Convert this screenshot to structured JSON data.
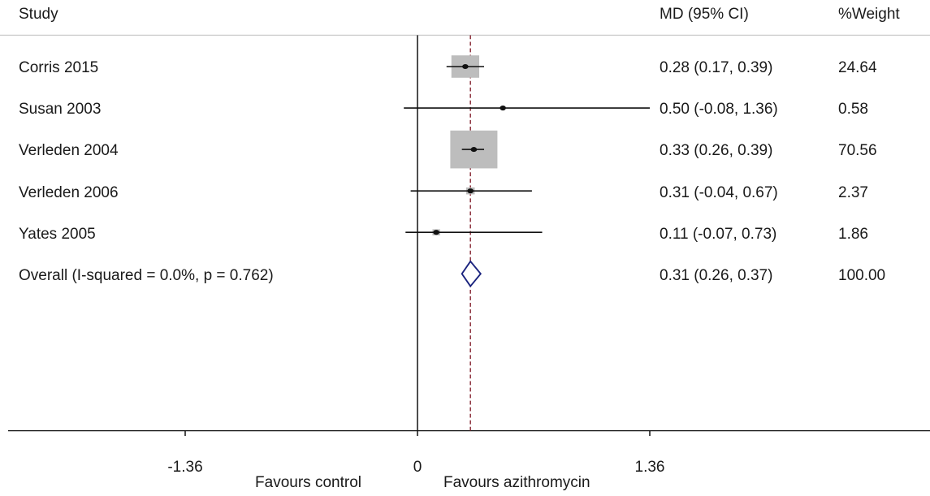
{
  "header": {
    "study_label": "Study",
    "md_label": "MD (95% CI)",
    "weight_label": "%Weight"
  },
  "chart_data": {
    "type": "forest",
    "studies": [
      {
        "name": "Corris 2015",
        "md": 0.28,
        "lower": 0.17,
        "upper": 0.39,
        "ci_text": "0.28 (0.17, 0.39)",
        "weight": 24.64,
        "weight_text": "24.64"
      },
      {
        "name": "Susan 2003",
        "md": 0.5,
        "lower": -0.08,
        "upper": 1.36,
        "ci_text": "0.50 (-0.08, 1.36)",
        "weight": 0.58,
        "weight_text": "0.58"
      },
      {
        "name": "Verleden 2004",
        "md": 0.33,
        "lower": 0.26,
        "upper": 0.39,
        "ci_text": "0.33 (0.26, 0.39)",
        "weight": 70.56,
        "weight_text": "70.56"
      },
      {
        "name": "Verleden 2006",
        "md": 0.31,
        "lower": -0.04,
        "upper": 0.67,
        "ci_text": "0.31 (-0.04, 0.67)",
        "weight": 2.37,
        "weight_text": "2.37"
      },
      {
        "name": "Yates 2005",
        "md": 0.11,
        "lower": -0.07,
        "upper": 0.73,
        "ci_text": "0.11 (-0.07, 0.73)",
        "weight": 1.86,
        "weight_text": "1.86"
      }
    ],
    "overall": {
      "label": "Overall  (I-squared = 0.0%, p = 0.762)",
      "md": 0.31,
      "lower": 0.26,
      "upper": 0.37,
      "ci_text": "0.31 (0.26, 0.37)",
      "weight_text": "100.00"
    },
    "x_ticks": [
      -1.36,
      0,
      1.36
    ],
    "x_tick_labels": [
      "-1.36",
      "0",
      "1.36"
    ],
    "xlim": [
      -1.36,
      1.36
    ],
    "favours_left": "Favours control",
    "favours_right": "Favours azithromycin",
    "null_line": 0,
    "colors": {
      "box": "#bdbdbd",
      "diamond": "#1a237e",
      "overall_line": "#8b2e3a",
      "line": "#111111"
    }
  }
}
